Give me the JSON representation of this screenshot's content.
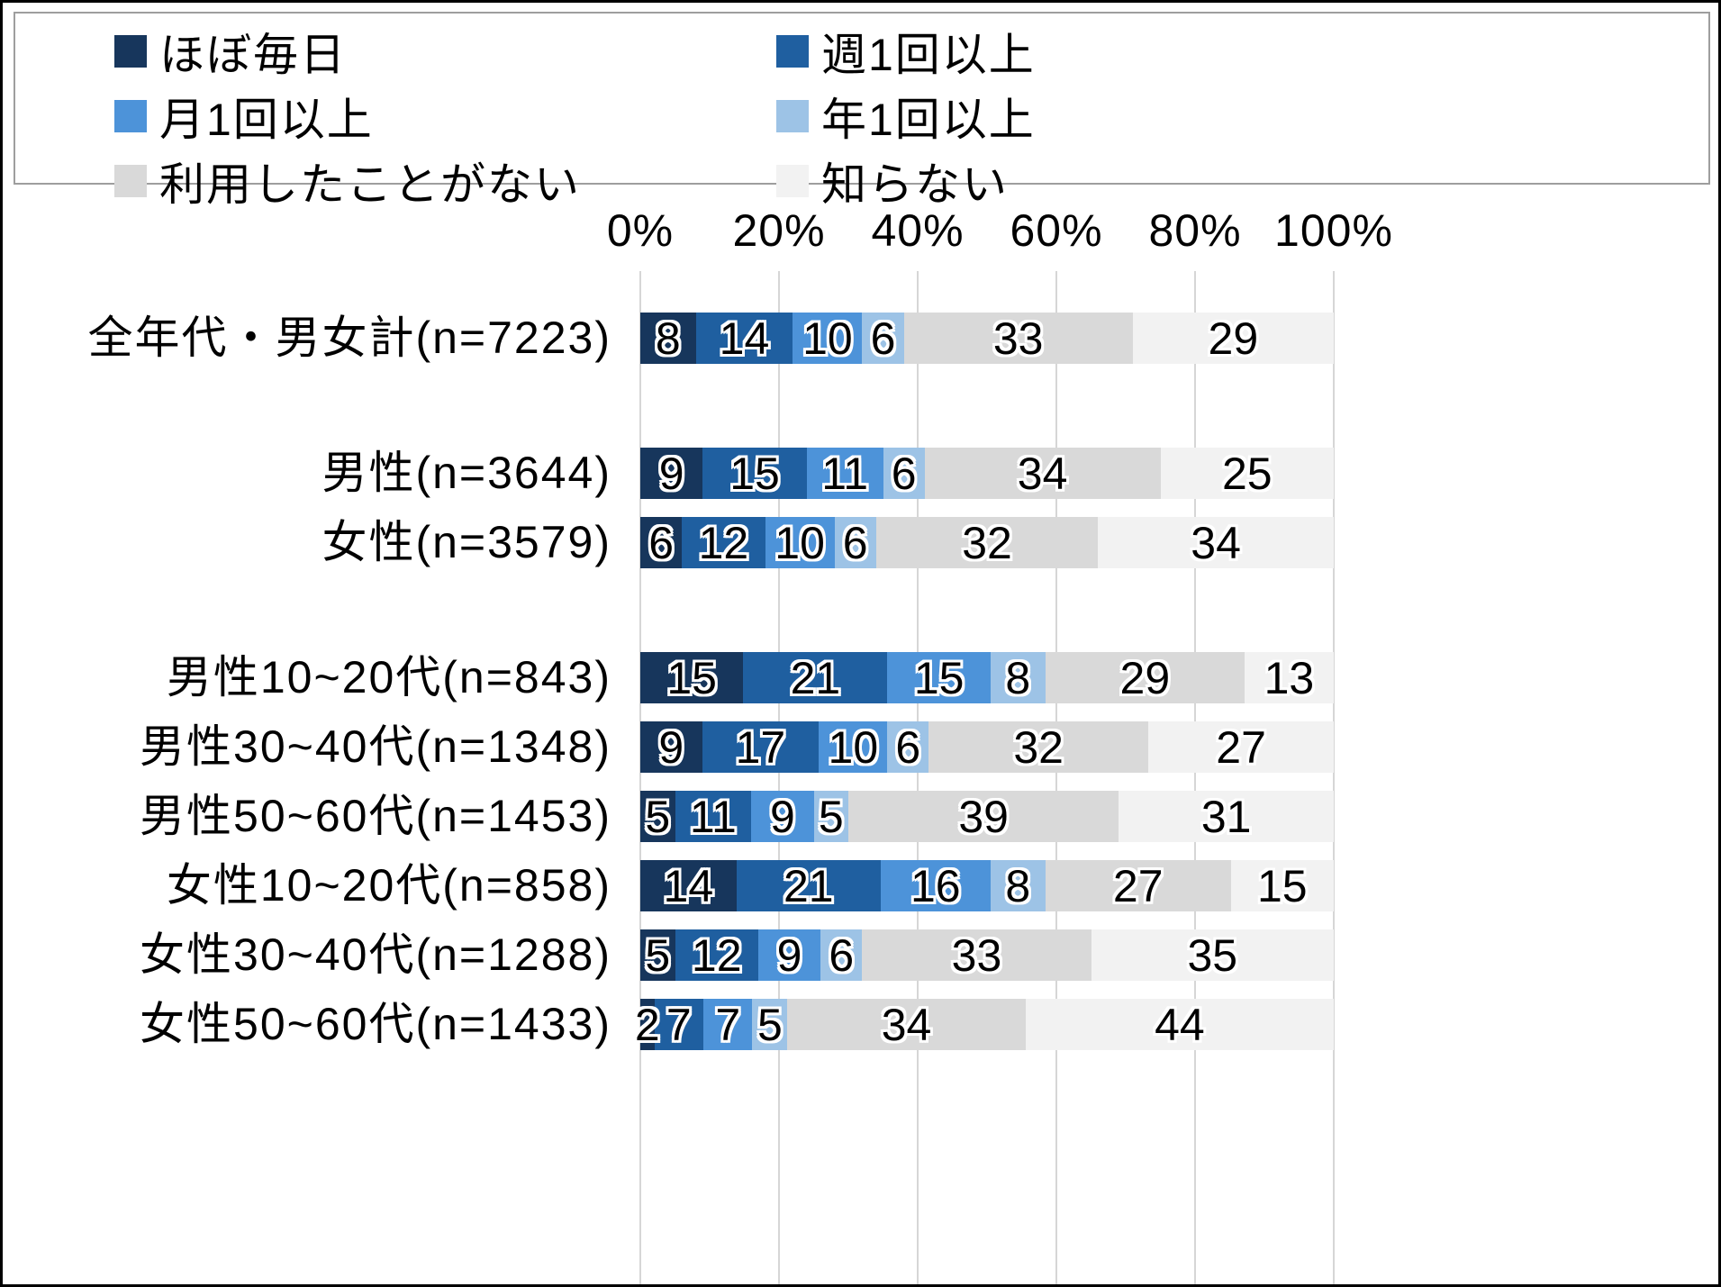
{
  "legend": {
    "items": [
      {
        "label": "ほぼ毎日",
        "color": "#17365c"
      },
      {
        "label": "週1回以上",
        "color": "#1f5fa0"
      },
      {
        "label": "月1回以上",
        "color": "#4d93d9"
      },
      {
        "label": "年1回以上",
        "color": "#9dc3e6"
      },
      {
        "label": "利用したことがない",
        "color": "#d9d9d9"
      },
      {
        "label": "知らない",
        "color": "#f2f2f2"
      }
    ]
  },
  "chart_data": {
    "type": "bar",
    "orientation": "horizontal",
    "stacked": true,
    "title": "",
    "x_axis": {
      "min": 0,
      "max": 100,
      "ticks": [
        "0%",
        "20%",
        "40%",
        "60%",
        "80%",
        "100%"
      ]
    },
    "series_names": [
      "ほぼ毎日",
      "週1回以上",
      "月1回以上",
      "年1回以上",
      "利用したことがない",
      "知らない"
    ],
    "series_colors": [
      "#17365c",
      "#1f5fa0",
      "#4d93d9",
      "#9dc3e6",
      "#d9d9d9",
      "#f2f2f2"
    ],
    "rows": [
      {
        "label": "全年代・男女計(n=7223)",
        "group": 0,
        "values": [
          8,
          14,
          10,
          6,
          33,
          29
        ]
      },
      {
        "label": "男性(n=3644)",
        "group": 1,
        "values": [
          9,
          15,
          11,
          6,
          34,
          25
        ]
      },
      {
        "label": "女性(n=3579)",
        "group": 1,
        "values": [
          6,
          12,
          10,
          6,
          32,
          34
        ]
      },
      {
        "label": "男性10~20代(n=843)",
        "group": 2,
        "values": [
          15,
          21,
          15,
          8,
          29,
          13
        ]
      },
      {
        "label": "男性30~40代(n=1348)",
        "group": 2,
        "values": [
          9,
          17,
          10,
          6,
          32,
          27
        ]
      },
      {
        "label": "男性50~60代(n=1453)",
        "group": 2,
        "values": [
          5,
          11,
          9,
          5,
          39,
          31
        ]
      },
      {
        "label": "女性10~20代(n=858)",
        "group": 2,
        "values": [
          14,
          21,
          16,
          8,
          27,
          15
        ]
      },
      {
        "label": "女性30~40代(n=1288)",
        "group": 2,
        "values": [
          5,
          12,
          9,
          6,
          33,
          35
        ]
      },
      {
        "label": "女性50~60代(n=1433)",
        "group": 2,
        "values": [
          2,
          7,
          7,
          5,
          34,
          44
        ]
      }
    ]
  }
}
